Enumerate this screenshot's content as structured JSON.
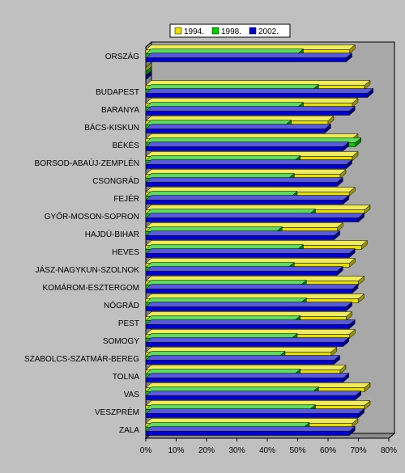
{
  "chart_data": {
    "type": "bar",
    "orientation": "horizontal",
    "style": "3d-bars",
    "title": "",
    "xlabel": "",
    "ylabel": "",
    "xlim": [
      0,
      80
    ],
    "x_ticks": [
      "0%",
      "10%",
      "20%",
      "30%",
      "40%",
      "50%",
      "60%",
      "70%",
      "80%"
    ],
    "grid": false,
    "legend_position": "top-right",
    "categories": [
      "ORSZÁG",
      "",
      "BUDAPEST",
      "BARANYA",
      "BÁCS-KISKUN",
      "BÉKÉS",
      "BORSOD-ABAÚJ-ZEMPLÉN",
      "CSONGRÁD",
      "FEJÉR",
      "GYŐR-MOSON-SOPRON",
      "HAJDÚ-BIHAR",
      "HEVES",
      "JÁSZ-NAGYKUN-SZOLNOK",
      "KOMÁROM-ESZTERGOM",
      "NÓGRÁD",
      "PEST",
      "SOMOGY",
      "SZABOLCS-SZATMÁR-BEREG",
      "TOLNA",
      "VAS",
      "VESZPRÉM",
      "ZALA"
    ],
    "series": [
      {
        "name": "1994.",
        "color": "#e8e000",
        "values": [
          67,
          0,
          72,
          68,
          60,
          68,
          68,
          64,
          67,
          72,
          63,
          71,
          67,
          70,
          70,
          66,
          67,
          61,
          64,
          72,
          72,
          68
        ]
      },
      {
        "name": "1998.",
        "color": "#00cc00",
        "values": [
          50,
          0,
          55,
          50,
          46,
          69,
          49,
          47,
          48,
          54,
          43,
          50,
          47,
          51,
          51,
          49,
          48,
          44,
          49,
          55,
          54,
          52
        ]
      },
      {
        "name": "2002.",
        "color": "#0000cc",
        "values": [
          66,
          0,
          73,
          67,
          59,
          65,
          66,
          63,
          65,
          70,
          62,
          67,
          63,
          68,
          66,
          67,
          65,
          62,
          65,
          69,
          70,
          67
        ]
      }
    ]
  }
}
